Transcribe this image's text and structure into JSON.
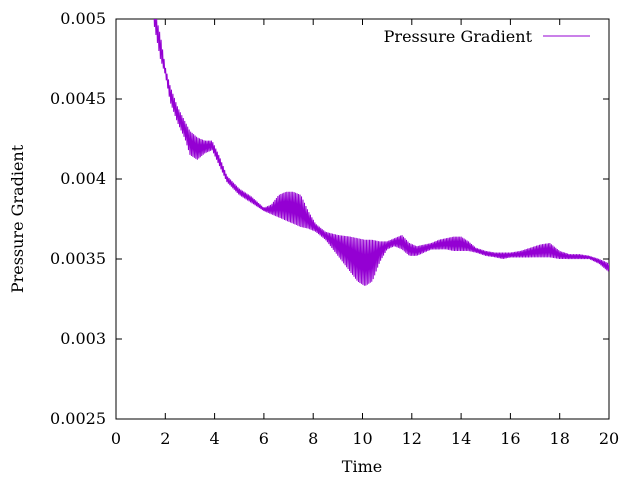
{
  "chart_data": {
    "type": "line",
    "title": "",
    "xlabel": "Time",
    "ylabel": "Pressure Gradient",
    "xlim": [
      0,
      20
    ],
    "ylim": [
      0.0025,
      0.005
    ],
    "x_ticks": [
      0,
      2,
      4,
      6,
      8,
      10,
      12,
      14,
      16,
      18,
      20
    ],
    "y_ticks": [
      0.0025,
      0.003,
      0.0035,
      0.004,
      0.0045,
      0.005
    ],
    "x_tick_labels": [
      "0",
      "2",
      "4",
      "6",
      "8",
      "10",
      "12",
      "14",
      "16",
      "18",
      "20"
    ],
    "y_tick_labels": [
      "0.0025",
      "0.003",
      "0.0035",
      "0.004",
      "0.0045",
      "0.005"
    ],
    "grid": false,
    "legend_position": "top-right",
    "series": [
      {
        "name": "Pressure Gradient",
        "color": "#9400d3",
        "style": "rapidly oscillating line (filled band between lower and upper envelope)",
        "x": [
          1.2,
          1.5,
          1.8,
          2.0,
          2.2,
          2.5,
          2.8,
          3.0,
          3.3,
          3.6,
          3.9,
          4.2,
          4.5,
          5.0,
          5.5,
          6.0,
          6.3,
          6.6,
          6.9,
          7.2,
          7.5,
          7.8,
          8.1,
          8.5,
          9.0,
          9.5,
          9.8,
          10.1,
          10.4,
          10.7,
          11.0,
          11.3,
          11.6,
          11.9,
          12.2,
          12.5,
          12.8,
          13.1,
          13.4,
          13.7,
          14.0,
          14.3,
          14.6,
          15.0,
          15.4,
          15.7,
          16.0,
          16.4,
          16.8,
          17.2,
          17.6,
          18.0,
          18.4,
          18.8,
          19.2,
          19.6,
          19.9,
          20.0
        ],
        "lower": [
          0.0051,
          0.005,
          0.00475,
          0.00465,
          0.00448,
          0.00435,
          0.00425,
          0.00415,
          0.00412,
          0.00416,
          0.00418,
          0.00408,
          0.00398,
          0.0039,
          0.00385,
          0.0038,
          0.00378,
          0.00376,
          0.00374,
          0.00372,
          0.0037,
          0.00369,
          0.00367,
          0.00362,
          0.00352,
          0.00342,
          0.00336,
          0.00333,
          0.00336,
          0.00348,
          0.00356,
          0.00358,
          0.00356,
          0.00352,
          0.00352,
          0.00354,
          0.00356,
          0.00356,
          0.00356,
          0.00355,
          0.00355,
          0.00355,
          0.00354,
          0.00352,
          0.00351,
          0.0035,
          0.00351,
          0.00351,
          0.00351,
          0.00351,
          0.00351,
          0.0035,
          0.0035,
          0.0035,
          0.0035,
          0.00347,
          0.00343,
          0.00342
        ],
        "upper": [
          0.0051,
          0.0051,
          0.0049,
          0.0047,
          0.00458,
          0.00445,
          0.00436,
          0.0043,
          0.00426,
          0.00424,
          0.00424,
          0.00414,
          0.00402,
          0.00394,
          0.00389,
          0.00382,
          0.00384,
          0.0039,
          0.00392,
          0.00392,
          0.0039,
          0.0038,
          0.00372,
          0.00367,
          0.00365,
          0.00364,
          0.00363,
          0.00362,
          0.00362,
          0.00361,
          0.00361,
          0.00363,
          0.00365,
          0.0036,
          0.00358,
          0.00359,
          0.0036,
          0.00362,
          0.00363,
          0.00364,
          0.00364,
          0.00361,
          0.00357,
          0.00355,
          0.00354,
          0.00354,
          0.00354,
          0.00355,
          0.00357,
          0.00359,
          0.0036,
          0.00355,
          0.00353,
          0.00353,
          0.00352,
          0.0035,
          0.00348,
          0.00347
        ]
      }
    ]
  }
}
